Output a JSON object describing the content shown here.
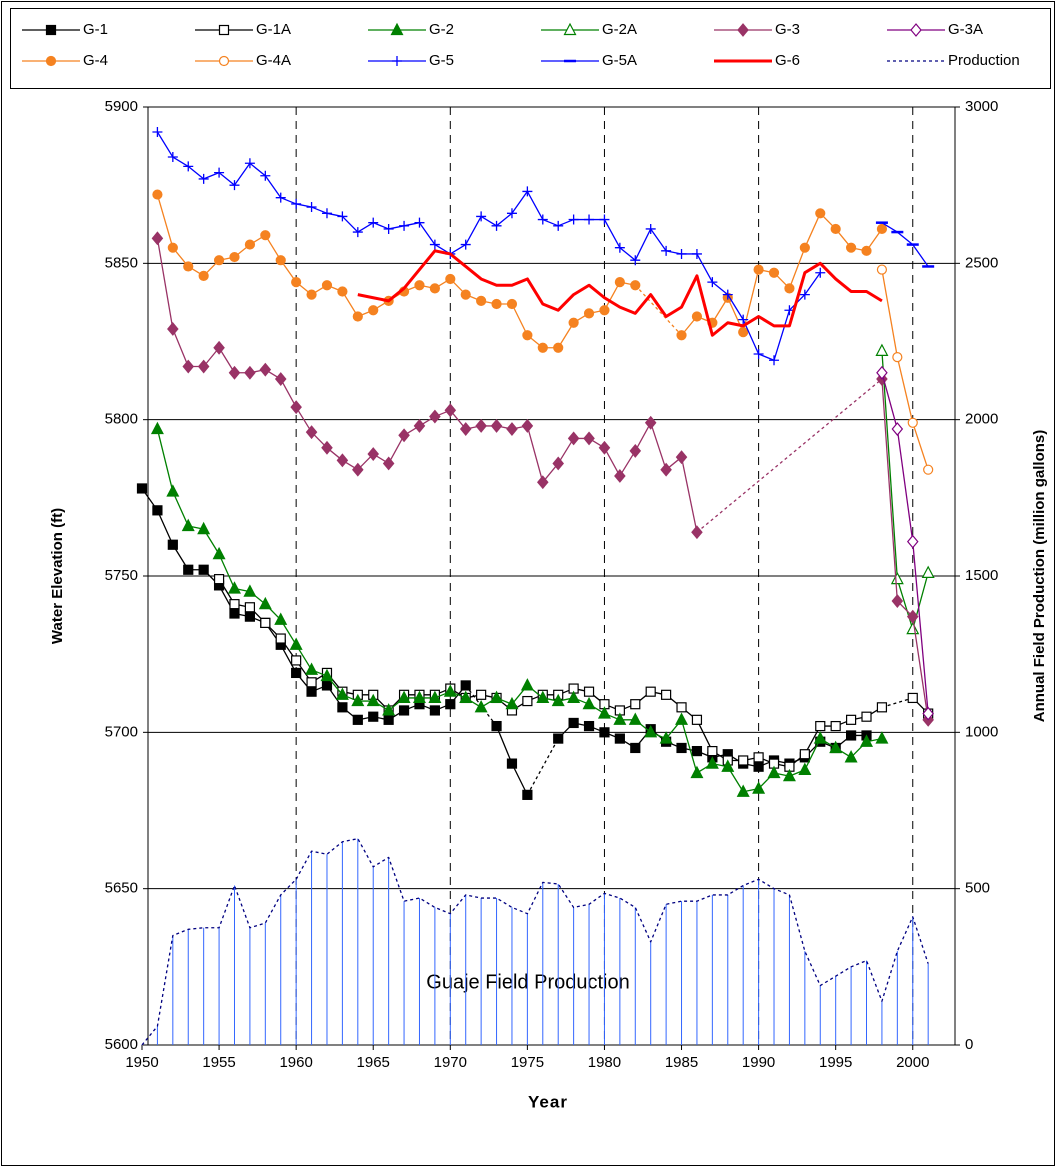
{
  "chart_data": {
    "type": "line",
    "xlabel": "Year",
    "ylabel": "Water Elevation (ft)",
    "y2label": "Annual Field Production (million gallons)",
    "annotation": "Guaje Field Production",
    "x": [
      1950,
      1951,
      1952,
      1953,
      1954,
      1955,
      1956,
      1957,
      1958,
      1959,
      1960,
      1961,
      1962,
      1963,
      1964,
      1965,
      1966,
      1967,
      1968,
      1969,
      1970,
      1971,
      1972,
      1973,
      1974,
      1975,
      1976,
      1977,
      1978,
      1979,
      1980,
      1981,
      1982,
      1983,
      1984,
      1985,
      1986,
      1987,
      1988,
      1989,
      1990,
      1991,
      1992,
      1993,
      1994,
      1995,
      1996,
      1997,
      1998,
      1999,
      2000,
      2001
    ],
    "xlim": [
      1950,
      2003
    ],
    "xticks": [
      1950,
      1955,
      1960,
      1965,
      1970,
      1975,
      1980,
      1985,
      1990,
      1995,
      2000
    ],
    "ylim": [
      5600,
      5900
    ],
    "yticks": [
      5600,
      5650,
      5700,
      5750,
      5800,
      5850,
      5900
    ],
    "y2lim": [
      0,
      3000
    ],
    "y2ticks": [
      0,
      500,
      1000,
      1500,
      2000,
      2500,
      3000
    ],
    "grid": true,
    "legend": "top",
    "series": [
      {
        "name": "G-1",
        "color": "#000000",
        "marker": "square-filled",
        "bridge": "dotted",
        "values": [
          5778,
          5771,
          5760,
          5752,
          5752,
          5747,
          5738,
          5737,
          5735,
          5728,
          5719,
          5713,
          5715,
          5708,
          5704,
          5705,
          5704,
          5707,
          5709,
          5707,
          5709,
          5715,
          null,
          5702,
          5690,
          5680,
          null,
          5698,
          5703,
          5702,
          5700,
          5698,
          5695,
          5701,
          5697,
          5695,
          5694,
          5692,
          5693,
          5690,
          5689,
          5691,
          5690,
          5692,
          5697,
          5695,
          5699,
          5699,
          null,
          null,
          null,
          null
        ]
      },
      {
        "name": "G-1A",
        "color": "#000000",
        "marker": "square-open",
        "bridge": "dotted",
        "values": [
          null,
          null,
          null,
          null,
          null,
          5749,
          5741,
          5740,
          5735,
          5730,
          5723,
          5716,
          5719,
          5713,
          5712,
          5712,
          5707,
          5712,
          5712,
          5712,
          5714,
          5711,
          5712,
          5711,
          5707,
          5710,
          5712,
          5712,
          5714,
          5713,
          5709,
          5707,
          5709,
          5713,
          5712,
          5708,
          5704,
          5694,
          5691,
          5691,
          5692,
          5690,
          5689,
          5693,
          5702,
          5702,
          5704,
          5705,
          5708,
          null,
          5711,
          5706
        ]
      },
      {
        "name": "G-2",
        "color": "#008000",
        "marker": "triangle-filled",
        "values": [
          null,
          5797,
          5777,
          5766,
          5765,
          5757,
          5746,
          5745,
          5741,
          5736,
          5728,
          5720,
          5718,
          5712,
          5710,
          5710,
          5707,
          5711,
          5711,
          5711,
          5713,
          5711,
          5708,
          5711,
          5709,
          5715,
          5711,
          5710,
          5711,
          5709,
          5706,
          5704,
          5704,
          5700,
          5698,
          5704,
          5687,
          5690,
          5689,
          5681,
          5682,
          5687,
          5686,
          5688,
          5698,
          5695,
          5692,
          5697,
          5698,
          null,
          null,
          null
        ]
      },
      {
        "name": "G-2A",
        "color": "#008000",
        "marker": "triangle-open",
        "values": [
          null,
          null,
          null,
          null,
          null,
          null,
          null,
          null,
          null,
          null,
          null,
          null,
          null,
          null,
          null,
          null,
          null,
          null,
          null,
          null,
          null,
          null,
          null,
          null,
          null,
          null,
          null,
          null,
          null,
          null,
          null,
          null,
          null,
          null,
          null,
          null,
          null,
          null,
          null,
          null,
          null,
          null,
          null,
          null,
          null,
          null,
          null,
          null,
          5822,
          5749,
          5733,
          5751
        ]
      },
      {
        "name": "G-3",
        "color": "#993366",
        "marker": "diamond-filled",
        "bridge": "dotted",
        "values": [
          null,
          5858,
          5829,
          5817,
          5817,
          5823,
          5815,
          5815,
          5816,
          5813,
          5804,
          5796,
          5791,
          5787,
          5784,
          5789,
          5786,
          5795,
          5798,
          5801,
          5803,
          5797,
          5798,
          5798,
          5797,
          5798,
          5780,
          5786,
          5794,
          5794,
          5791,
          5782,
          5790,
          5799,
          5784,
          5788,
          5764,
          null,
          null,
          null,
          null,
          null,
          null,
          null,
          null,
          null,
          null,
          null,
          5813,
          5742,
          5737,
          5704
        ]
      },
      {
        "name": "G-3A",
        "color": "#800080",
        "marker": "diamond-open",
        "values": [
          null,
          null,
          null,
          null,
          null,
          null,
          null,
          null,
          null,
          null,
          null,
          null,
          null,
          null,
          null,
          null,
          null,
          null,
          null,
          null,
          null,
          null,
          null,
          null,
          null,
          null,
          null,
          null,
          null,
          null,
          null,
          null,
          null,
          null,
          null,
          null,
          null,
          null,
          null,
          null,
          null,
          null,
          null,
          null,
          null,
          null,
          null,
          null,
          5815,
          5797,
          5761,
          5706
        ]
      },
      {
        "name": "G-4",
        "color": "#f58220",
        "marker": "circle-filled",
        "bridge": "dotted",
        "values": [
          null,
          5872,
          5855,
          5849,
          5846,
          5851,
          5852,
          5856,
          5859,
          5851,
          5844,
          5840,
          5843,
          5841,
          5833,
          5835,
          5838,
          5841,
          5843,
          5842,
          5845,
          5840,
          5838,
          5837,
          5837,
          5827,
          5823,
          5823,
          5831,
          5834,
          5835,
          5844,
          5843,
          null,
          null,
          5827,
          5833,
          5831,
          5839,
          5828,
          5848,
          5847,
          5842,
          5855,
          5866,
          5861,
          5855,
          5854,
          5861,
          null,
          null,
          null
        ]
      },
      {
        "name": "G-4A",
        "color": "#f58220",
        "marker": "circle-open",
        "values": [
          null,
          null,
          null,
          null,
          null,
          null,
          null,
          null,
          null,
          null,
          null,
          null,
          null,
          null,
          null,
          null,
          null,
          null,
          null,
          null,
          null,
          null,
          null,
          null,
          null,
          null,
          null,
          null,
          null,
          null,
          null,
          null,
          null,
          null,
          null,
          null,
          null,
          null,
          null,
          null,
          null,
          null,
          null,
          null,
          null,
          null,
          null,
          null,
          5848,
          5820,
          5799,
          5784
        ]
      },
      {
        "name": "G-5",
        "color": "#0000ff",
        "marker": "plus",
        "values": [
          null,
          5892,
          5884,
          5881,
          5877,
          5879,
          5875,
          5882,
          5878,
          5871,
          5869,
          5868,
          5866,
          5865,
          5860,
          5863,
          5861,
          5862,
          5863,
          5856,
          5853,
          5856,
          5865,
          5862,
          5866,
          5873,
          5864,
          5862,
          5864,
          5864,
          5864,
          5855,
          5851,
          5861,
          5854,
          5853,
          5853,
          5844,
          5840,
          5832,
          5821,
          5819,
          5835,
          5840,
          5847,
          null,
          null,
          null,
          null,
          null,
          null,
          null
        ]
      },
      {
        "name": "G-5A",
        "color": "#0000ff",
        "marker": "dash",
        "values": [
          null,
          null,
          null,
          null,
          null,
          null,
          null,
          null,
          null,
          null,
          null,
          null,
          null,
          null,
          null,
          null,
          null,
          null,
          null,
          null,
          null,
          null,
          null,
          null,
          null,
          null,
          null,
          null,
          null,
          null,
          null,
          null,
          null,
          null,
          null,
          null,
          null,
          null,
          null,
          null,
          null,
          null,
          null,
          null,
          null,
          null,
          null,
          null,
          5863,
          5860,
          5856,
          5849
        ]
      },
      {
        "name": "G-6",
        "color": "#ff0000",
        "marker": "none",
        "width": 3,
        "values": [
          null,
          null,
          null,
          null,
          null,
          null,
          null,
          null,
          null,
          null,
          null,
          null,
          null,
          null,
          5840,
          5839,
          5838,
          5842,
          5848,
          5854,
          5853,
          5849,
          5845,
          5843,
          5843,
          5845,
          5837,
          5835,
          5840,
          5843,
          5839,
          5836,
          5834,
          5840,
          5833,
          5836,
          5846,
          5827,
          5831,
          5830,
          5833,
          5830,
          5830,
          5847,
          5850,
          5845,
          5841,
          5841,
          5838,
          null,
          null,
          null
        ]
      },
      {
        "name": "Production",
        "color": "#000080",
        "marker": "none",
        "dash": "dotted",
        "axis": "y2",
        "drop_lines": "#3366ff",
        "values": [
          0,
          60,
          350,
          370,
          375,
          375,
          510,
          375,
          390,
          480,
          530,
          620,
          610,
          650,
          660,
          570,
          600,
          460,
          470,
          440,
          420,
          480,
          470,
          470,
          440,
          420,
          520,
          515,
          440,
          450,
          485,
          470,
          440,
          330,
          450,
          460,
          460,
          480,
          480,
          510,
          530,
          500,
          480,
          300,
          190,
          220,
          250,
          270,
          140,
          300,
          410,
          260
        ]
      }
    ]
  }
}
